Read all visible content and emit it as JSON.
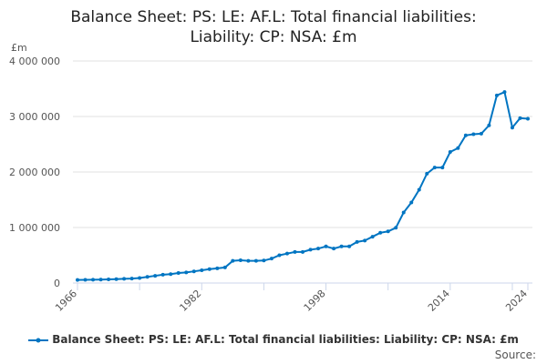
{
  "chart_data": {
    "type": "line",
    "title": "Balance Sheet: PS: LE: AF.L: Total financial liabilities: Liability: CP: NSA: £m",
    "title_lines": [
      "Balance Sheet: PS: LE: AF.L: Total financial liabilities:",
      "Liability: CP: NSA: £m"
    ],
    "ylabel": "£m",
    "ylim": [
      0,
      4000000
    ],
    "yticks": [
      0,
      1000000,
      2000000,
      3000000,
      4000000
    ],
    "ytick_labels": [
      "0",
      "1 000 000",
      "2 000 000",
      "3 000 000",
      "4 000 000"
    ],
    "xlim": [
      1966,
      2024
    ],
    "xtick_labels": [
      "1966",
      "1982",
      "1998",
      "2014",
      "2024"
    ],
    "grid": true,
    "legend_position": "bottom",
    "series": [
      {
        "name": "Balance Sheet: PS: LE: AF.L: Total financial liabilities: Liability: CP: NSA: £m",
        "color": "#0075c2",
        "x": [
          1966,
          1967,
          1968,
          1969,
          1970,
          1971,
          1972,
          1973,
          1974,
          1975,
          1976,
          1977,
          1978,
          1979,
          1980,
          1981,
          1982,
          1983,
          1984,
          1985,
          1986,
          1987,
          1988,
          1989,
          1990,
          1991,
          1992,
          1993,
          1994,
          1995,
          1996,
          1997,
          1998,
          1999,
          2000,
          2001,
          2002,
          2003,
          2004,
          2005,
          2006,
          2007,
          2008,
          2009,
          2010,
          2011,
          2012,
          2013,
          2014,
          2015,
          2016,
          2017,
          2018,
          2019,
          2020,
          2021,
          2022,
          2023,
          2024
        ],
        "values": [
          55000,
          58000,
          60000,
          62000,
          65000,
          70000,
          75000,
          80000,
          90000,
          110000,
          130000,
          150000,
          160000,
          180000,
          190000,
          210000,
          230000,
          250000,
          265000,
          280000,
          400000,
          410000,
          400000,
          400000,
          405000,
          440000,
          500000,
          530000,
          560000,
          560000,
          600000,
          620000,
          660000,
          620000,
          660000,
          660000,
          740000,
          765000,
          835000,
          905000,
          930000,
          995000,
          1270000,
          1450000,
          1680000,
          1970000,
          2080000,
          2080000,
          2360000,
          2430000,
          2660000,
          2680000,
          2690000,
          2840000,
          3380000,
          3440000,
          2800000,
          2970000,
          2960000
        ]
      }
    ]
  },
  "source_label": "Source:"
}
